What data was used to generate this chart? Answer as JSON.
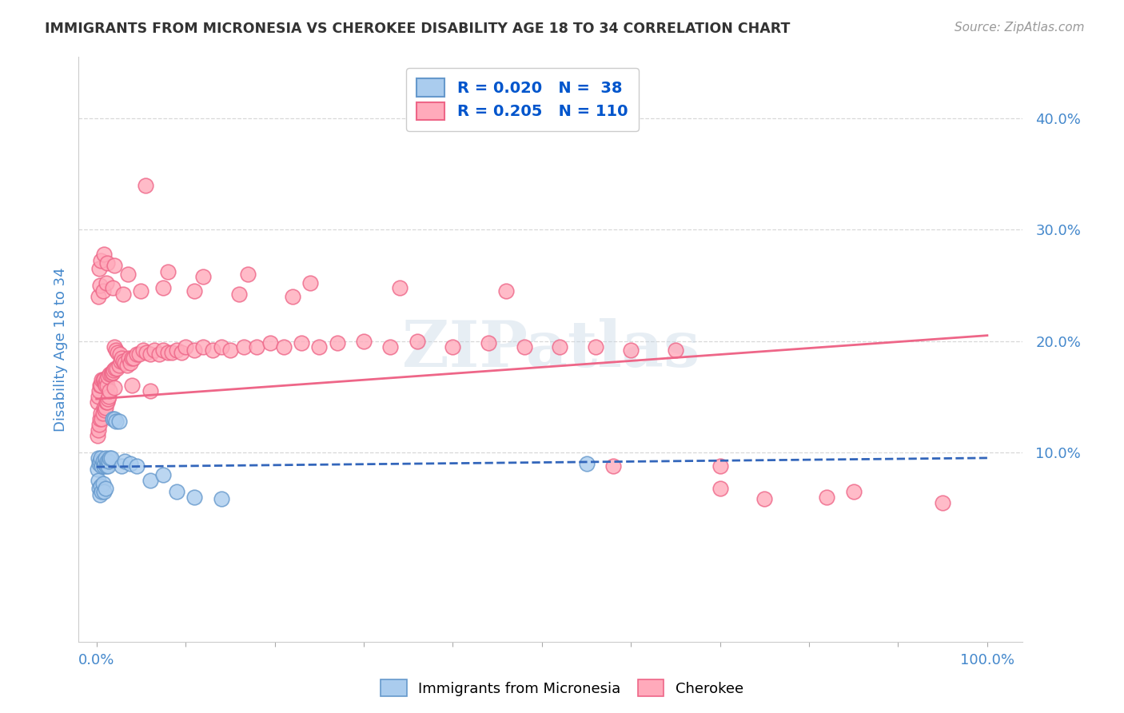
{
  "title": "IMMIGRANTS FROM MICRONESIA VS CHEROKEE DISABILITY AGE 18 TO 34 CORRELATION CHART",
  "source": "Source: ZipAtlas.com",
  "ylabel": "Disability Age 18 to 34",
  "y_ticks": [
    0.1,
    0.2,
    0.3,
    0.4
  ],
  "y_ticklabels": [
    "10.0%",
    "20.0%",
    "30.0%",
    "40.0%"
  ],
  "xlim": [
    -0.02,
    1.04
  ],
  "ylim": [
    -0.07,
    0.455
  ],
  "scatter_blue_x": [
    0.001,
    0.002,
    0.002,
    0.003,
    0.003,
    0.004,
    0.004,
    0.005,
    0.005,
    0.006,
    0.006,
    0.007,
    0.007,
    0.008,
    0.008,
    0.009,
    0.01,
    0.01,
    0.011,
    0.012,
    0.013,
    0.014,
    0.015,
    0.016,
    0.018,
    0.02,
    0.022,
    0.025,
    0.028,
    0.032,
    0.038,
    0.045,
    0.06,
    0.075,
    0.09,
    0.11,
    0.14,
    0.55
  ],
  "scatter_blue_y": [
    0.085,
    0.095,
    0.075,
    0.09,
    0.068,
    0.092,
    0.062,
    0.095,
    0.07,
    0.088,
    0.065,
    0.092,
    0.072,
    0.088,
    0.065,
    0.09,
    0.095,
    0.068,
    0.088,
    0.092,
    0.088,
    0.092,
    0.095,
    0.095,
    0.13,
    0.13,
    0.128,
    0.128,
    0.088,
    0.092,
    0.09,
    0.088,
    0.075,
    0.08,
    0.065,
    0.06,
    0.058,
    0.09
  ],
  "scatter_pink_x": [
    0.001,
    0.001,
    0.002,
    0.002,
    0.003,
    0.003,
    0.004,
    0.004,
    0.005,
    0.005,
    0.006,
    0.006,
    0.007,
    0.007,
    0.008,
    0.008,
    0.009,
    0.009,
    0.01,
    0.01,
    0.011,
    0.011,
    0.012,
    0.012,
    0.013,
    0.013,
    0.014,
    0.015,
    0.015,
    0.016,
    0.017,
    0.018,
    0.019,
    0.02,
    0.021,
    0.022,
    0.023,
    0.024,
    0.025,
    0.026,
    0.027,
    0.028,
    0.03,
    0.032,
    0.034,
    0.036,
    0.038,
    0.04,
    0.042,
    0.045,
    0.048,
    0.052,
    0.056,
    0.06,
    0.065,
    0.07,
    0.075,
    0.08,
    0.085,
    0.09,
    0.095,
    0.1,
    0.11,
    0.12,
    0.13,
    0.14,
    0.15,
    0.165,
    0.18,
    0.195,
    0.21,
    0.23,
    0.25,
    0.27,
    0.3,
    0.33,
    0.36,
    0.4,
    0.44,
    0.48,
    0.52,
    0.56,
    0.6,
    0.65,
    0.7,
    0.75,
    0.85,
    0.95,
    0.003,
    0.005,
    0.008,
    0.012,
    0.02,
    0.035,
    0.055,
    0.08,
    0.12,
    0.17,
    0.24,
    0.34,
    0.46,
    0.58,
    0.7,
    0.82,
    0.002,
    0.004,
    0.007,
    0.011,
    0.018,
    0.03,
    0.05,
    0.075,
    0.11,
    0.16,
    0.22,
    0.02,
    0.04,
    0.06
  ],
  "scatter_pink_y": [
    0.115,
    0.145,
    0.12,
    0.15,
    0.125,
    0.155,
    0.13,
    0.16,
    0.135,
    0.16,
    0.13,
    0.165,
    0.135,
    0.165,
    0.14,
    0.165,
    0.138,
    0.162,
    0.14,
    0.16,
    0.145,
    0.165,
    0.145,
    0.16,
    0.148,
    0.168,
    0.15,
    0.155,
    0.17,
    0.17,
    0.172,
    0.172,
    0.174,
    0.195,
    0.175,
    0.192,
    0.175,
    0.19,
    0.178,
    0.188,
    0.182,
    0.185,
    0.182,
    0.18,
    0.178,
    0.185,
    0.18,
    0.185,
    0.185,
    0.188,
    0.188,
    0.192,
    0.19,
    0.188,
    0.192,
    0.188,
    0.192,
    0.19,
    0.19,
    0.192,
    0.19,
    0.195,
    0.192,
    0.195,
    0.192,
    0.195,
    0.192,
    0.195,
    0.195,
    0.198,
    0.195,
    0.198,
    0.195,
    0.198,
    0.2,
    0.195,
    0.2,
    0.195,
    0.198,
    0.195,
    0.195,
    0.195,
    0.192,
    0.192,
    0.068,
    0.058,
    0.065,
    0.055,
    0.265,
    0.272,
    0.278,
    0.27,
    0.268,
    0.26,
    0.34,
    0.262,
    0.258,
    0.26,
    0.252,
    0.248,
    0.245,
    0.088,
    0.088,
    0.06,
    0.24,
    0.25,
    0.245,
    0.252,
    0.248,
    0.242,
    0.245,
    0.248,
    0.245,
    0.242,
    0.24,
    0.158,
    0.16,
    0.155
  ],
  "blue_line_x": [
    0.0,
    1.0
  ],
  "blue_line_y": [
    0.087,
    0.095
  ],
  "pink_line_x": [
    0.0,
    1.0
  ],
  "pink_line_y": [
    0.148,
    0.205
  ],
  "watermark_text": "ZIPatlas",
  "background_color": "#ffffff",
  "grid_color": "#d8d8d8",
  "title_color": "#333333",
  "axis_label_color": "#4488cc",
  "tick_color": "#4488cc",
  "scatter_blue_color": "#aaccee",
  "scatter_blue_edge": "#6699cc",
  "scatter_pink_color": "#ffaabb",
  "scatter_pink_edge": "#ee6688",
  "blue_line_color": "#3366bb",
  "pink_line_color": "#ee6688"
}
